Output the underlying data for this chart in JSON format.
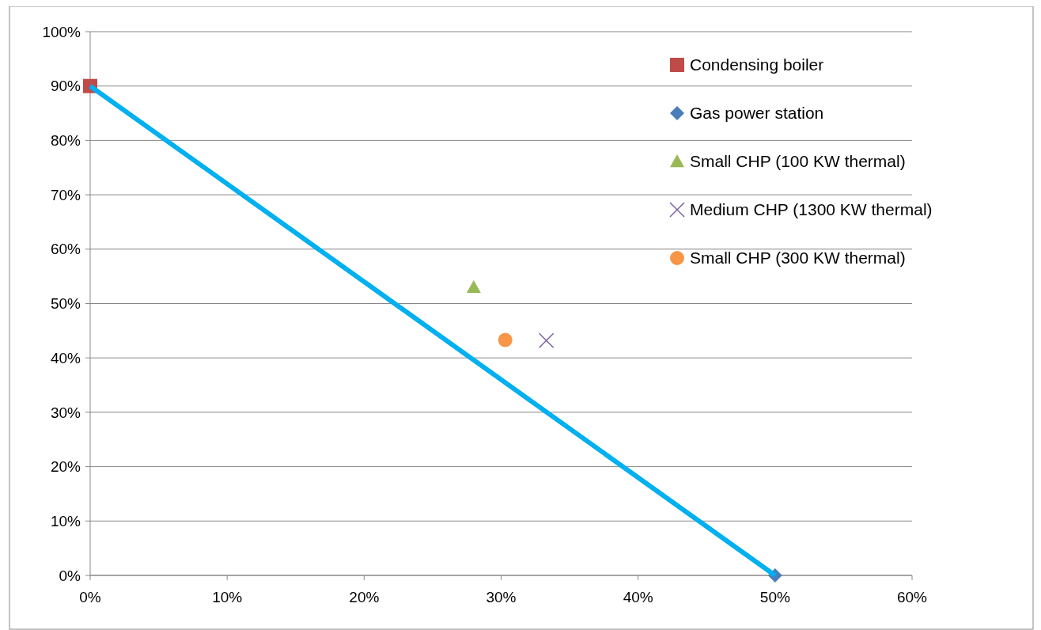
{
  "chart_data": {
    "type": "scatter",
    "xlim": [
      0,
      60
    ],
    "ylim": [
      0,
      100
    ],
    "xticks": [
      {
        "value": 0,
        "label": "0%"
      },
      {
        "value": 10,
        "label": "10%"
      },
      {
        "value": 20,
        "label": "20%"
      },
      {
        "value": 30,
        "label": "30%"
      },
      {
        "value": 40,
        "label": "40%"
      },
      {
        "value": 50,
        "label": "50%"
      },
      {
        "value": 60,
        "label": "60%"
      }
    ],
    "yticks": [
      {
        "value": 0,
        "label": "0%"
      },
      {
        "value": 10,
        "label": "10%"
      },
      {
        "value": 20,
        "label": "20%"
      },
      {
        "value": 30,
        "label": "30%"
      },
      {
        "value": 40,
        "label": "40%"
      },
      {
        "value": 50,
        "label": "50%"
      },
      {
        "value": 60,
        "label": "60%"
      },
      {
        "value": 70,
        "label": "70%"
      },
      {
        "value": 80,
        "label": "80%"
      },
      {
        "value": 90,
        "label": "90%"
      },
      {
        "value": 100,
        "label": "100%"
      }
    ],
    "grid": "y",
    "legend": "top right",
    "series": [
      {
        "type": "line",
        "color": "#00b0f0",
        "x": [
          0,
          50
        ],
        "values": [
          90,
          0
        ],
        "marker": "none"
      },
      {
        "name": "Condensing boiler",
        "color": "#be4b48",
        "x": [
          0
        ],
        "values": [
          90
        ],
        "marker": "square"
      },
      {
        "name": "Gas power station",
        "color": "#4a7ebb",
        "x": [
          50
        ],
        "values": [
          0
        ],
        "marker": "diamond"
      },
      {
        "name": "Small CHP  (100 KW thermal)",
        "color": "#98b954",
        "x": [
          28
        ],
        "values": [
          53
        ],
        "marker": "triangle"
      },
      {
        "name": "Medium CHP (1300 KW thermal)",
        "color": "#7d60a0",
        "x": [
          33.3
        ],
        "values": [
          43.2
        ],
        "marker": "cross"
      },
      {
        "name": "Small CHP  (300 KW thermal)",
        "color": "#f79646",
        "x": [
          30.3
        ],
        "values": [
          43.3
        ],
        "marker": "circle"
      }
    ]
  }
}
